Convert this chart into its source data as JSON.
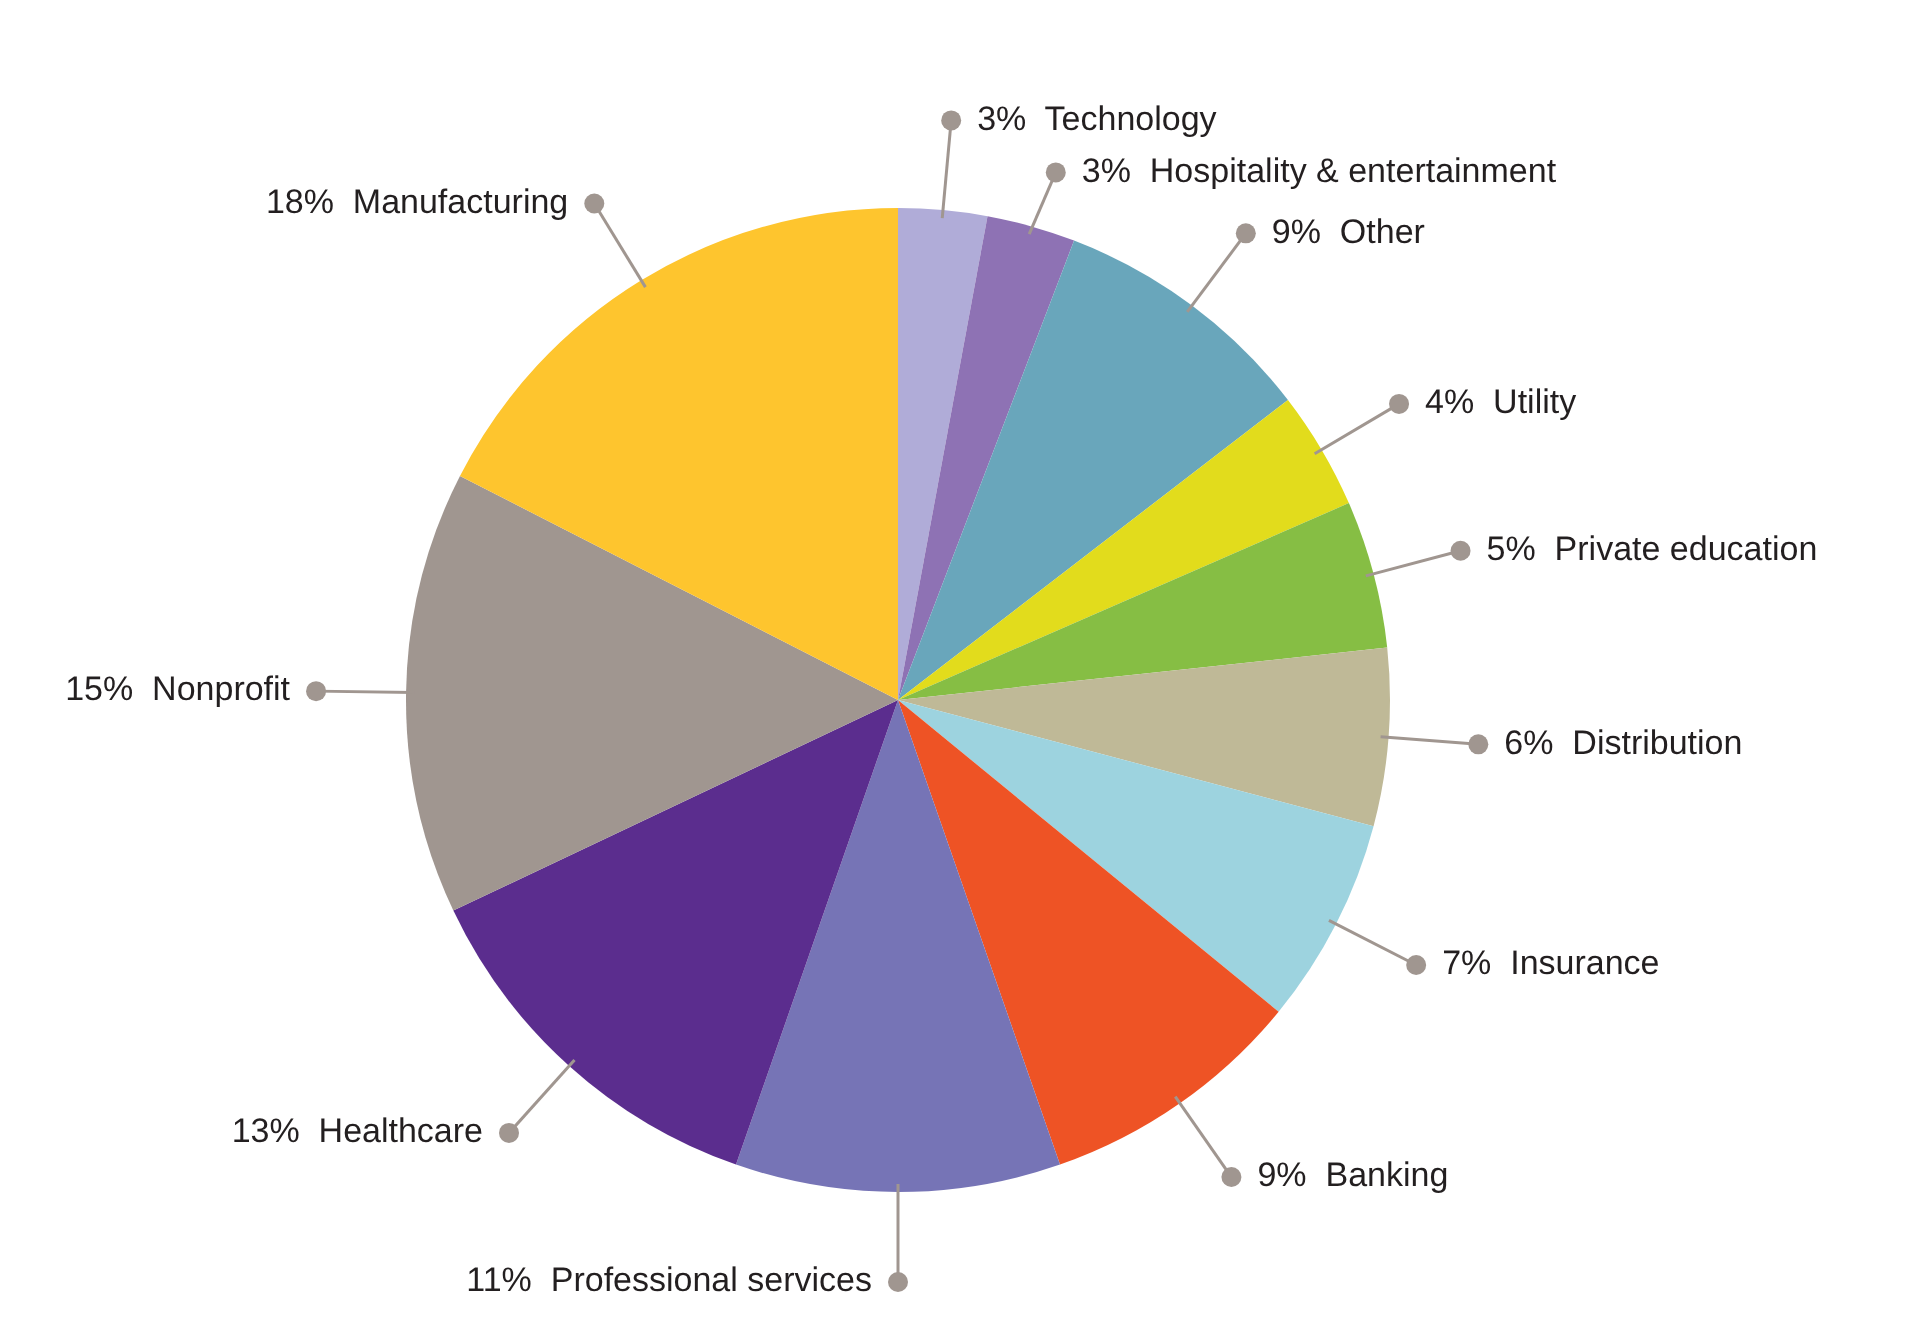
{
  "chart_data": {
    "type": "pie",
    "categories": [
      "Technology",
      "Hospitality & entertainment",
      "Other",
      "Utility",
      "Private education",
      "Distribution",
      "Insurance",
      "Banking",
      "Professional services",
      "Healthcare",
      "Nonprofit",
      "Manufacturing"
    ],
    "values": [
      3,
      3,
      9,
      4,
      5,
      6,
      7,
      9,
      11,
      13,
      15,
      18
    ],
    "value_labels": [
      "3%",
      "3%",
      "9%",
      "4%",
      "5%",
      "6%",
      "7%",
      "9%",
      "11%",
      "13%",
      "15%",
      "18%"
    ],
    "colors": [
      "#b0acd8",
      "#8e72b4",
      "#69a6bb",
      "#e2dc1c",
      "#86be44",
      "#bfb997",
      "#9dd3df",
      "#ee5325",
      "#7674b6",
      "#5b2d8e",
      "#a09690",
      "#fec52e"
    ]
  }
}
